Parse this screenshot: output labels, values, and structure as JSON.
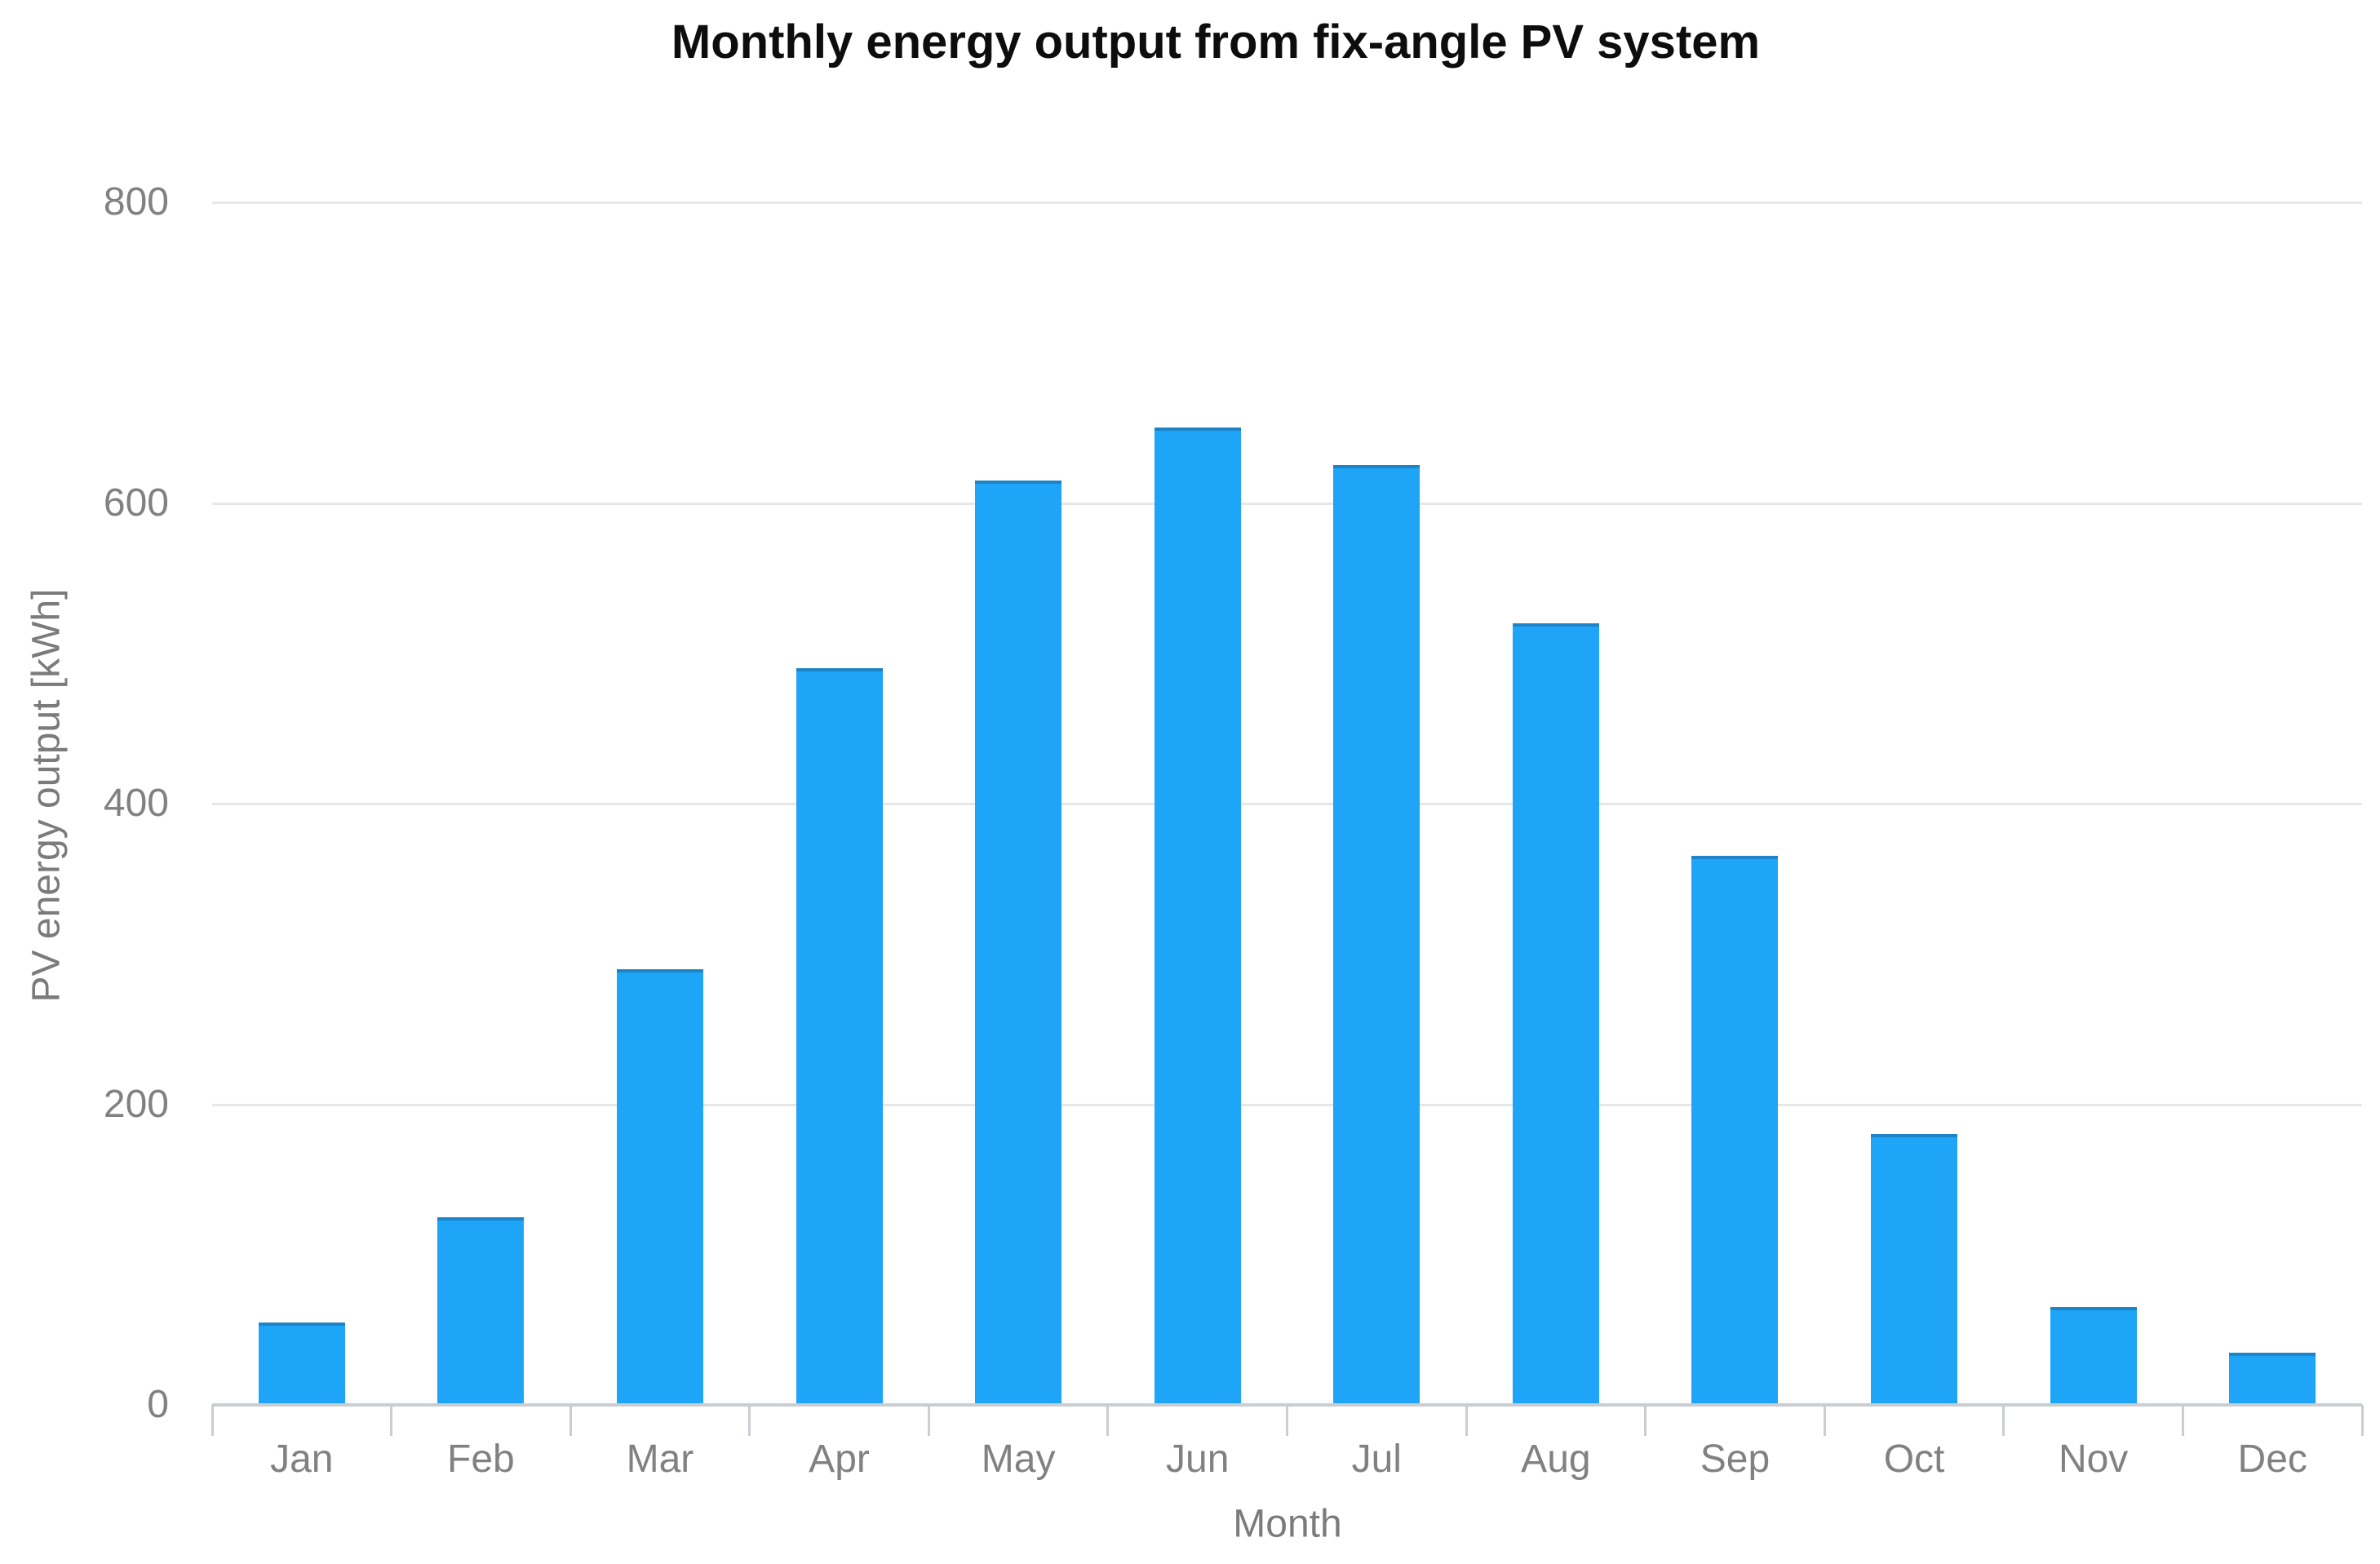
{
  "chart_data": {
    "type": "bar",
    "title": "Monthly energy output from fix-angle PV system",
    "xlabel": "Month",
    "ylabel": "PV energy output [kWh]",
    "categories": [
      "Jan",
      "Feb",
      "Mar",
      "Apr",
      "May",
      "Jun",
      "Jul",
      "Aug",
      "Sep",
      "Oct",
      "Nov",
      "Dec"
    ],
    "values": [
      55,
      125,
      290,
      490,
      615,
      650,
      625,
      520,
      365,
      180,
      65,
      35
    ],
    "series_name": "PV energy output",
    "ylim": [
      0,
      800
    ],
    "yticks": [
      0,
      200,
      400,
      600,
      800
    ],
    "grid": "horizontal-only",
    "legend": "none",
    "bar_color": "#1fa5f7",
    "grid_color": "#e7e7e7",
    "axis_line_color": "#c9ced3",
    "tick_label_color": "#818181",
    "axis_title_color": "#7b7b7b",
    "title_color": "#0d0d0d",
    "background_color": "#ffffff"
  }
}
